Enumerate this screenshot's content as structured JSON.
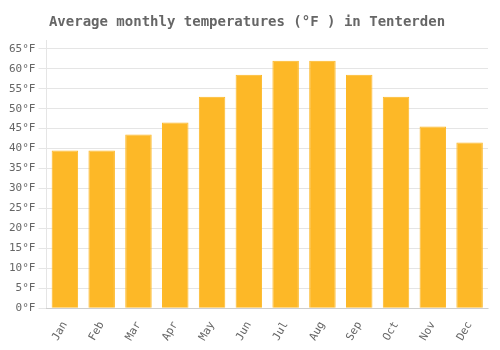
{
  "chart_data": {
    "type": "bar",
    "title": "Average monthly temperatures (°F ) in Tenterden",
    "categories": [
      "Jan",
      "Feb",
      "Mar",
      "Apr",
      "May",
      "Jun",
      "Jul",
      "Aug",
      "Sep",
      "Oct",
      "Nov",
      "Dec"
    ],
    "values": [
      39.5,
      39.5,
      43.5,
      46.5,
      53,
      58.5,
      62,
      62,
      58.5,
      53,
      45.5,
      41.5
    ],
    "color": "#FDB827",
    "ylim": [
      0,
      67
    ],
    "yticks": [
      {
        "value": 0,
        "label": "0°F"
      },
      {
        "value": 5,
        "label": "5°F"
      },
      {
        "value": 10,
        "label": "10°F"
      },
      {
        "value": 15,
        "label": "15°F"
      },
      {
        "value": 20,
        "label": "20°F"
      },
      {
        "value": 25,
        "label": "25°F"
      },
      {
        "value": 30,
        "label": "30°F"
      },
      {
        "value": 35,
        "label": "35°F"
      },
      {
        "value": 40,
        "label": "40°F"
      },
      {
        "value": 45,
        "label": "45°F"
      },
      {
        "value": 50,
        "label": "50°F"
      },
      {
        "value": 55,
        "label": "55°F"
      },
      {
        "value": 60,
        "label": "60°F"
      },
      {
        "value": 65,
        "label": "65°F"
      }
    ],
    "grid": true
  }
}
